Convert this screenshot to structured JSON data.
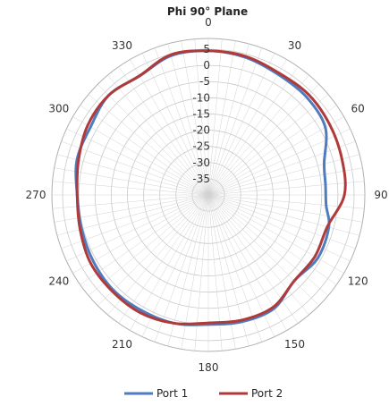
{
  "chart_data": {
    "type": "polar-line",
    "title": "Phi 90° Plane",
    "angle_labels": [
      "0",
      "30",
      "60",
      "90",
      "120",
      "150",
      "180",
      "210",
      "240",
      "270",
      "300",
      "330"
    ],
    "radial_labels": [
      "5",
      "0",
      "-5",
      "-10",
      "-15",
      "-20",
      "-25",
      "-30",
      "-35"
    ],
    "rlim": [
      -40,
      5
    ],
    "angle_step_deg": 5,
    "grid": true,
    "legend_position": "bottom",
    "series": [
      {
        "name": "Port 1",
        "color": "#4f7bbf",
        "theta": [
          0,
          15,
          30,
          45,
          60,
          75,
          85,
          95,
          105,
          120,
          135,
          150,
          165,
          180,
          195,
          210,
          225,
          240,
          255,
          270,
          285,
          300,
          315,
          330,
          345
        ],
        "r": [
          4.5,
          4,
          3,
          2.8,
          1.7,
          -3,
          -3.7,
          -3.5,
          -1.5,
          -1,
          -2.5,
          0.5,
          0.5,
          0,
          1,
          1.2,
          1.5,
          1,
          0.5,
          0.5,
          2,
          2,
          3.5,
          2.4,
          4.5
        ]
      },
      {
        "name": "Port 2",
        "color": "#b03a3a",
        "theta": [
          0,
          15,
          30,
          45,
          60,
          75,
          90,
          105,
          120,
          135,
          150,
          165,
          180,
          195,
          210,
          225,
          240,
          255,
          270,
          285,
          300,
          315,
          330,
          345
        ],
        "r": [
          4.5,
          4.3,
          3.5,
          3.8,
          3.3,
          2.7,
          2,
          -2,
          -2,
          -2.5,
          0,
          0,
          -0.5,
          1,
          2,
          2,
          2,
          1,
          0.5,
          1.5,
          3,
          3.5,
          2.5,
          4.8
        ]
      }
    ]
  }
}
